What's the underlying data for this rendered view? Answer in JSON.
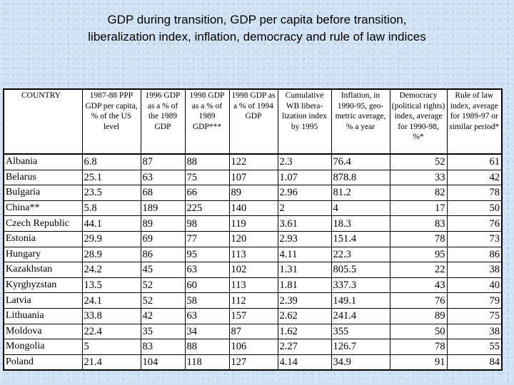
{
  "title": {
    "line1": "GDP during transition, GDP per capita before transition,",
    "line2": "liberalization index, inflation, democracy and rule of law indices"
  },
  "table": {
    "headers": [
      "COUNTRY",
      "1987-88 PPP GDP per capita, % of the US level",
      "1996 GDP as a % of the 1989 GDP",
      "1998 GDP as a % of 1989 GDP***",
      "1998 GDP as a % of 1994 GDP",
      "Cumulative WB libera-lization index by 1995",
      "Inflation, in 1990-95, geo-metric average, % a year",
      "Democracy (political rights) index, average for 1990-98, %*",
      "Rule of law index, average for 1989-97 or similar period*"
    ],
    "rows": [
      [
        "Albania",
        "6.8",
        "87",
        "88",
        "122",
        "2.3",
        "76.4",
        "52",
        "61"
      ],
      [
        "Belarus",
        "25.1",
        "63",
        "75",
        "107",
        "1.07",
        "878.8",
        "33",
        "42"
      ],
      [
        "Bulgaria",
        "23.5",
        "68",
        "66",
        "89",
        "2.96",
        "81.2",
        "82",
        "78"
      ],
      [
        "China**",
        "5.8",
        "189",
        "225",
        "140",
        "2",
        "4",
        "17",
        "50"
      ],
      [
        "Czech Republic",
        "44.1",
        "89",
        "98",
        "119",
        "3.61",
        "18.3",
        "83",
        "76"
      ],
      [
        "Estonia",
        "29.9",
        "69",
        "77",
        "120",
        "2.93",
        "151.4",
        "78",
        "73"
      ],
      [
        "Hungary",
        "28.9",
        "86",
        "95",
        "113",
        "4.11",
        "22.3",
        "95",
        "86"
      ],
      [
        "Kazakhstan",
        "24.2",
        "45",
        "63",
        "102",
        "1.31",
        "805.5",
        "22",
        "38"
      ],
      [
        "Kyrghyzstan",
        "13.5",
        "52",
        "60",
        "113",
        "1.81",
        "337.3",
        "43",
        "40"
      ],
      [
        "Latvia",
        "24.1",
        "52",
        "58",
        "112",
        "2.39",
        "149.1",
        "76",
        "79"
      ],
      [
        "Lithuania",
        "33.8",
        "42",
        "63",
        "157",
        "2.62",
        "241.4",
        "89",
        "75"
      ],
      [
        "Moldova",
        "22.4",
        "35",
        "34",
        "87",
        "1.62",
        "355",
        "50",
        "38"
      ],
      [
        "Mongolia",
        "5",
        "83",
        "88",
        "106",
        "2.27",
        "126.7",
        "78",
        "55"
      ],
      [
        "Poland",
        "21.4",
        "104",
        "118",
        "127",
        "4.14",
        "34.9",
        "91",
        "84"
      ]
    ]
  }
}
